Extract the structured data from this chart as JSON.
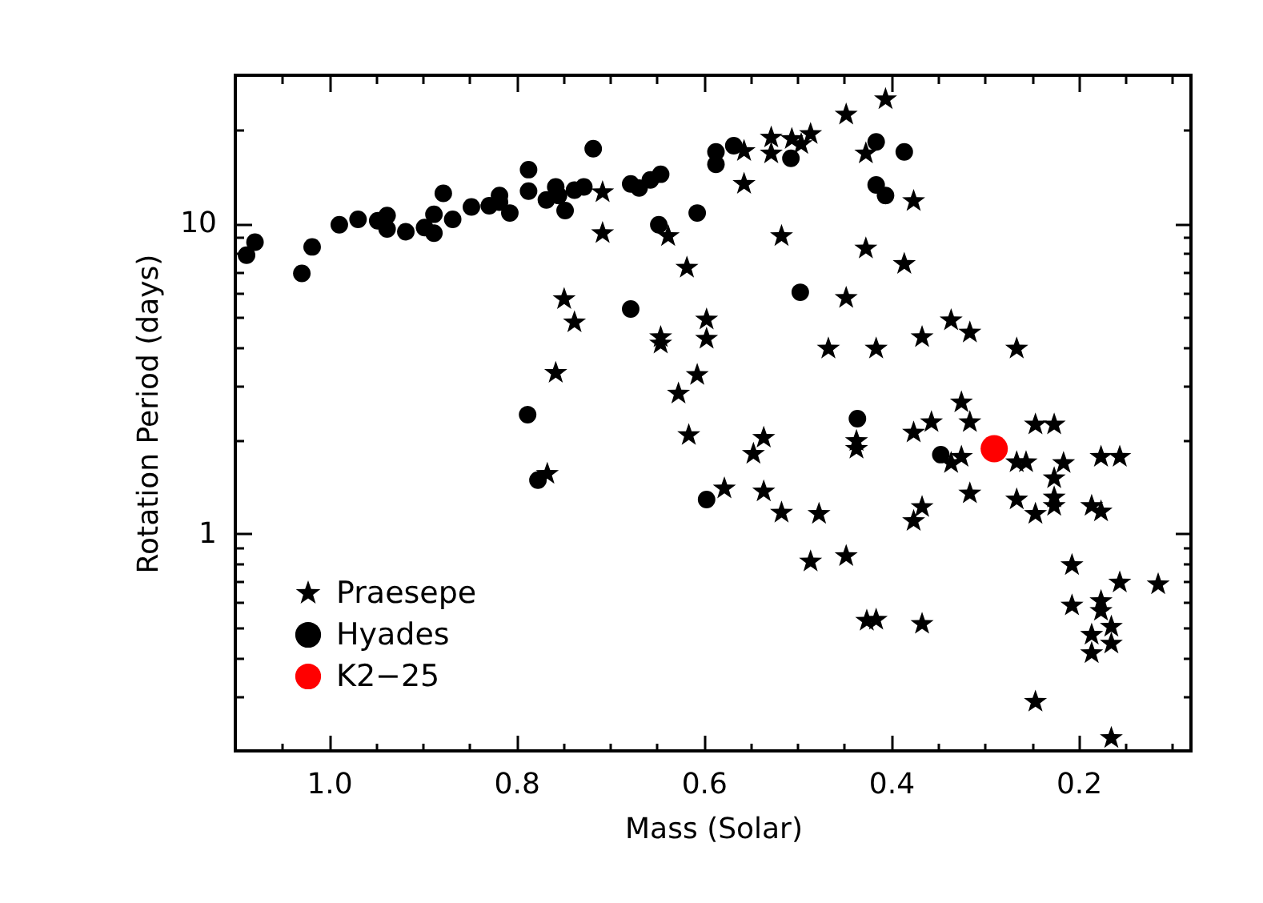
{
  "chart_data": {
    "type": "scatter",
    "xlabel": "Mass (Solar)",
    "ylabel": "Rotation Period (days)",
    "xlim": [
      1.1,
      0.08
    ],
    "ylim": [
      0.2,
      30
    ],
    "log": "y",
    "grid": false,
    "legend": "bottom left",
    "xticks": [
      {
        "value": 1.05,
        "label": null
      },
      {
        "value": 1.0,
        "label": "1.0"
      },
      {
        "value": 0.95,
        "label": null
      },
      {
        "value": 0.9,
        "label": null
      },
      {
        "value": 0.85,
        "label": null
      },
      0.8,
      {
        "value": 0.75,
        "label": null
      },
      {
        "value": 0.7,
        "label": null
      },
      {
        "value": 0.65,
        "label": null
      },
      0.6,
      {
        "value": 0.55,
        "label": null
      },
      {
        "value": 0.5,
        "label": null
      },
      {
        "value": 0.45,
        "label": null
      },
      0.4,
      {
        "value": 0.35,
        "label": null
      },
      {
        "value": 0.3,
        "label": null
      },
      {
        "value": 0.25,
        "label": null
      },
      0.2,
      {
        "value": 0.15,
        "label": null
      },
      {
        "value": 0.1,
        "label": null
      }
    ],
    "yticks": [
      {
        "value": 0.3,
        "label": null
      },
      {
        "value": 0.4,
        "label": null
      },
      {
        "value": 0.5,
        "label": null
      },
      {
        "value": 0.6,
        "label": null
      },
      {
        "value": 0.7,
        "label": null
      },
      {
        "value": 0.8,
        "label": null
      },
      {
        "value": 0.9,
        "label": null
      },
      1,
      {
        "value": 2,
        "label": null
      },
      {
        "value": 3,
        "label": null
      },
      {
        "value": 4,
        "label": null
      },
      {
        "value": 5,
        "label": null
      },
      {
        "value": 6,
        "label": null
      },
      {
        "value": 7,
        "label": null
      },
      {
        "value": 8,
        "label": null
      },
      {
        "value": 9,
        "label": null
      },
      10,
      {
        "value": 20,
        "label": null
      }
    ],
    "series": [
      {
        "name": "Praesepe",
        "color": "#000000",
        "marker": "star",
        "x": [
          0.708,
          0.708,
          0.638,
          0.618,
          0.749,
          0.738,
          0.646,
          0.646,
          0.597,
          0.597,
          0.758,
          0.627,
          0.607,
          0.557,
          0.557,
          0.406,
          0.448,
          0.528,
          0.506,
          0.486,
          0.496,
          0.528,
          0.427,
          0.376,
          0.517,
          0.427,
          0.386,
          0.448,
          0.467,
          0.416,
          0.367,
          0.336,
          0.316,
          0.266,
          0.325,
          0.767,
          0.616,
          0.578,
          0.536,
          0.547,
          0.437,
          0.437,
          0.536,
          0.517,
          0.477,
          0.486,
          0.448,
          0.426,
          0.416,
          0.367,
          0.376,
          0.357,
          0.316,
          0.336,
          0.325,
          0.316,
          0.367,
          0.376,
          0.266,
          0.256,
          0.246,
          0.226,
          0.216,
          0.226,
          0.266,
          0.246,
          0.226,
          0.226,
          0.176,
          0.156,
          0.186,
          0.176,
          0.207,
          0.156,
          0.115,
          0.207,
          0.176,
          0.176,
          0.186,
          0.165,
          0.186,
          0.165,
          0.246,
          0.165
        ],
        "values": [
          12.6,
          9.3,
          9.1,
          7.2,
          5.7,
          4.8,
          4.3,
          4.1,
          4.9,
          4.25,
          3.3,
          2.83,
          3.25,
          13.4,
          17.1,
          25.1,
          22.4,
          18.9,
          18.7,
          19.4,
          18.0,
          16.8,
          16.8,
          11.8,
          9.1,
          8.3,
          7.4,
          5.75,
          3.95,
          3.95,
          4.3,
          4.87,
          4.45,
          3.95,
          2.65,
          1.56,
          2.08,
          1.4,
          2.04,
          1.81,
          1.99,
          1.88,
          1.37,
          1.17,
          1.16,
          0.815,
          0.848,
          0.525,
          0.529,
          0.513,
          2.12,
          2.29,
          2.29,
          1.69,
          1.77,
          1.35,
          1.22,
          1.1,
          1.7,
          1.7,
          2.25,
          2.25,
          1.69,
          1.51,
          1.29,
          1.16,
          1.31,
          1.23,
          1.77,
          1.77,
          1.23,
          1.18,
          0.793,
          0.697,
          0.688,
          0.588,
          0.607,
          0.565,
          0.473,
          0.502,
          0.413,
          0.443,
          0.288,
          0.22
        ]
      },
      {
        "name": "Hyades",
        "color": "#000000",
        "marker": "circle",
        "x": [
          1.088,
          1.079,
          1.029,
          1.018,
          0.989,
          0.969,
          0.948,
          0.938,
          0.938,
          0.918,
          0.898,
          0.888,
          0.888,
          0.878,
          0.868,
          0.848,
          0.829,
          0.818,
          0.818,
          0.807,
          0.787,
          0.787,
          0.768,
          0.758,
          0.755,
          0.748,
          0.738,
          0.728,
          0.718,
          0.678,
          0.669,
          0.657,
          0.646,
          0.648,
          0.607,
          0.587,
          0.587,
          0.568,
          0.507,
          0.416,
          0.386,
          0.416,
          0.406,
          0.497,
          0.678,
          0.788,
          0.777,
          0.597,
          0.436,
          0.347
        ],
        "values": [
          7.9,
          8.7,
          6.9,
          8.4,
          9.9,
          10.3,
          10.2,
          10.6,
          9.6,
          9.4,
          9.7,
          10.7,
          9.3,
          12.5,
          10.3,
          11.3,
          11.4,
          12.3,
          11.7,
          10.8,
          14.9,
          12.7,
          11.9,
          13.1,
          12.3,
          11.0,
          12.8,
          13.1,
          17.4,
          13.4,
          13.0,
          13.8,
          14.4,
          9.9,
          10.8,
          17.0,
          15.5,
          17.8,
          16.2,
          18.3,
          17.0,
          13.3,
          12.3,
          6.0,
          5.3,
          2.42,
          1.49,
          1.29,
          2.35,
          1.8
        ]
      },
      {
        "name": "K2−25",
        "color": "#ff0000",
        "marker": "circle",
        "x": [
          0.29
        ],
        "values": [
          1.88
        ]
      }
    ]
  }
}
